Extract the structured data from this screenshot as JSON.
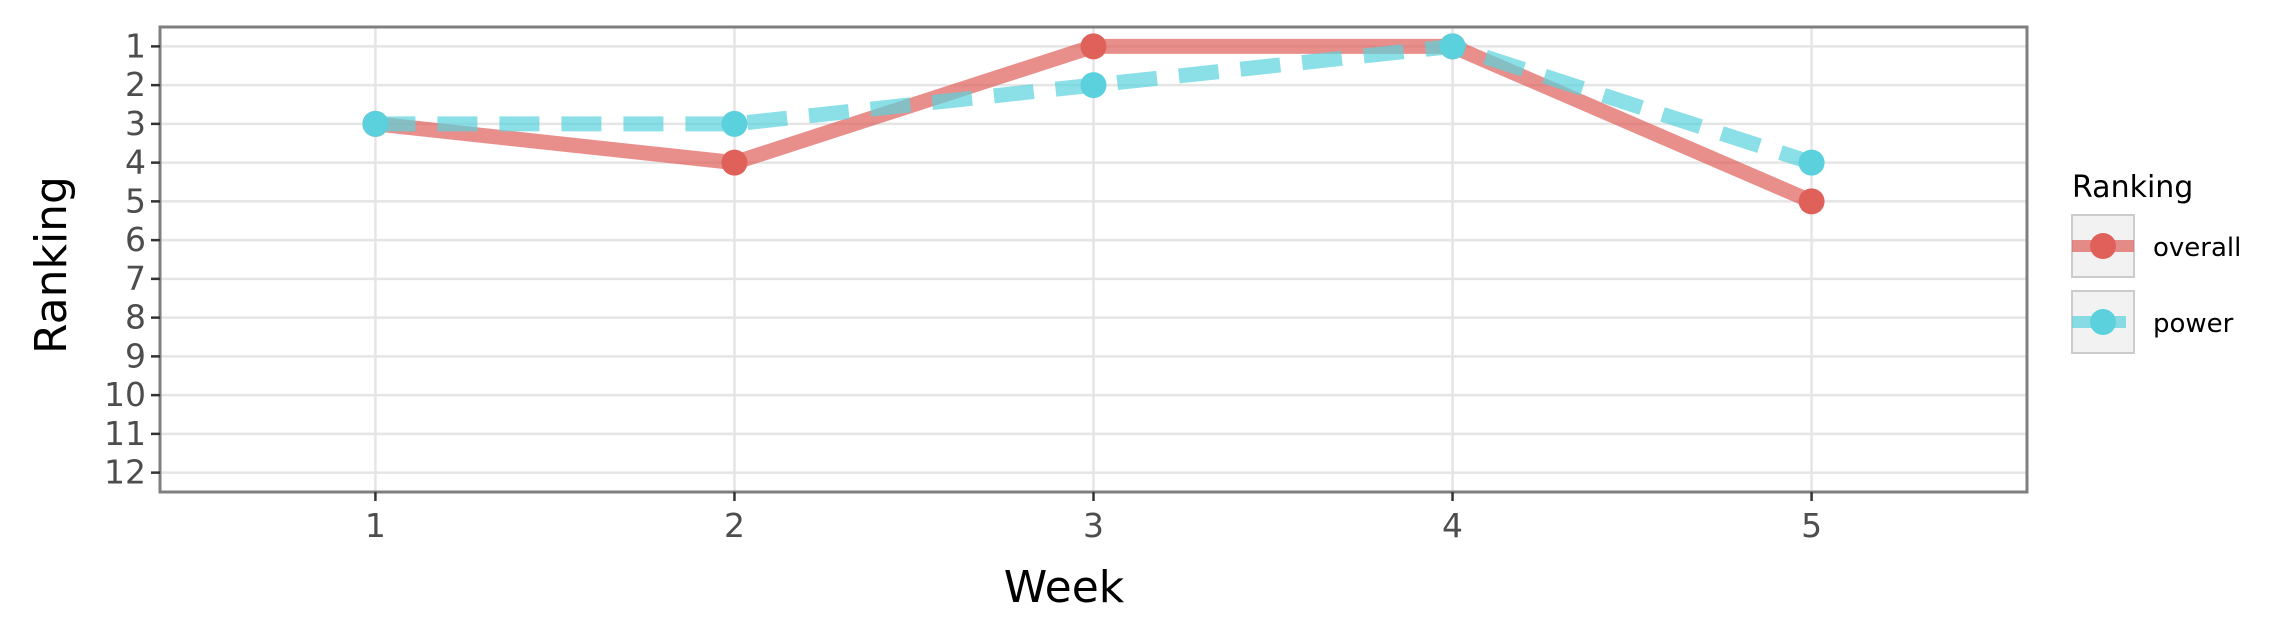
{
  "chart_data": {
    "type": "line",
    "xlabel": "Week",
    "ylabel": "Ranking",
    "x": [
      1,
      2,
      3,
      4,
      5
    ],
    "x_ticks": [
      "1",
      "2",
      "3",
      "4",
      "5"
    ],
    "y_ticks": [
      "1",
      "2",
      "3",
      "4",
      "5",
      "6",
      "7",
      "8",
      "9",
      "10",
      "11",
      "12"
    ],
    "xlim": [
      0.4,
      5.6
    ],
    "ylim": [
      12.5,
      0.5
    ],
    "y_reversed": true,
    "grid": true,
    "legend": {
      "title": "Ranking",
      "placement": "right"
    },
    "series": [
      {
        "name": "overall",
        "values": [
          3,
          4,
          1,
          1,
          5
        ],
        "color": "#e0605a",
        "dash": "solid"
      },
      {
        "name": "power",
        "values": [
          3,
          3,
          2,
          1,
          4
        ],
        "color": "#5ad1dc",
        "dash": "dashed"
      }
    ]
  }
}
